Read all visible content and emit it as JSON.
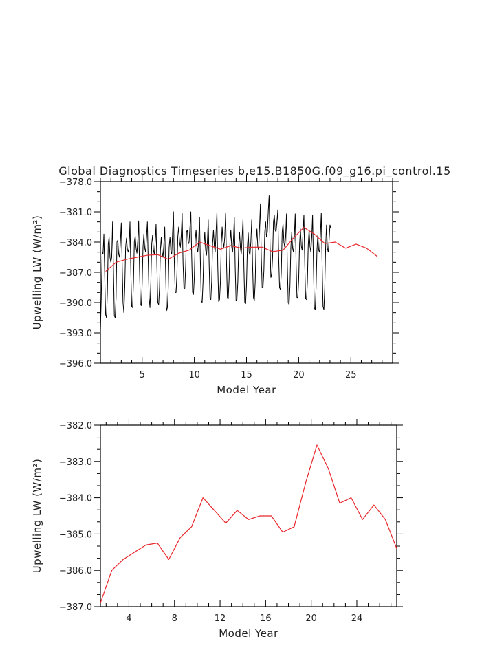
{
  "chart_data": [
    {
      "type": "line",
      "title": "Global Diagnostics Timeseries b.e15.B1850G.f09_g16.pi_control.15",
      "xlabel": "Model Year",
      "ylabel": "Upwelling LW (W/m²)",
      "xlim": [
        1,
        29
      ],
      "ylim": [
        -396.0,
        -378.0
      ],
      "xticks": [
        5,
        10,
        15,
        20,
        25
      ],
      "yticks": [
        -396.0,
        -393.0,
        -390.0,
        -387.0,
        -384.0,
        -381.0,
        -378.0
      ],
      "ytick_labels": [
        "−396.0",
        "−393.0",
        "−390.0",
        "−387.0",
        "−384.0",
        "−381.0",
        "−378.0"
      ],
      "grid": false,
      "series": [
        {
          "color": "#000000",
          "monthly": true,
          "x_start": 1.0,
          "x_step": 0.0833333,
          "values": [
            -392.8,
            -389.5,
            -385.0,
            -385.2,
            -383.2,
            -387.5,
            -391.2,
            -391.5,
            -389.0,
            -384.2,
            -383.5,
            -385.5,
            -386.0,
            -385.5,
            -382.0,
            -386.8,
            -391.3,
            -391.5,
            -389.5,
            -384.0,
            -383.8,
            -385.2,
            -385.5,
            -384.0,
            -382.1,
            -386.0,
            -390.0,
            -391.0,
            -388.5,
            -384.5,
            -383.6,
            -384.7,
            -385.0,
            -384.5,
            -382.0,
            -387.0,
            -390.4,
            -390.5,
            -388.0,
            -384.0,
            -383.4,
            -384.6,
            -385.1,
            -383.8,
            -381.9,
            -386.8,
            -390.2,
            -390.3,
            -388.2,
            -384.5,
            -383.2,
            -384.6,
            -385.0,
            -383.5,
            -382.0,
            -386.0,
            -389.5,
            -390.5,
            -388.0,
            -384.2,
            -383.3,
            -384.8,
            -385.2,
            -384.0,
            -382.2,
            -386.5,
            -390.0,
            -390.2,
            -388.5,
            -384.8,
            -383.5,
            -385.0,
            -385.5,
            -384.2,
            -382.5,
            -387.0,
            -390.8,
            -390.5,
            -388.5,
            -384.5,
            -383.5,
            -384.9,
            -385.2,
            -383.0,
            -381.0,
            -386.0,
            -389.0,
            -389.0,
            -387.2,
            -383.5,
            -382.5,
            -384.0,
            -384.5,
            -383.2,
            -381.1,
            -386.0,
            -388.5,
            -388.6,
            -386.5,
            -383.0,
            -382.8,
            -384.2,
            -384.0,
            -382.5,
            -381.0,
            -385.5,
            -389.0,
            -389.2,
            -387.5,
            -383.8,
            -382.8,
            -384.5,
            -385.0,
            -383.8,
            -381.5,
            -386.0,
            -389.8,
            -390.0,
            -388.0,
            -384.5,
            -383.0,
            -384.8,
            -385.3,
            -384.0,
            -381.8,
            -386.0,
            -389.5,
            -389.7,
            -387.8,
            -384.2,
            -382.8,
            -384.4,
            -385.0,
            -383.0,
            -381.0,
            -386.5,
            -389.9,
            -389.7,
            -388.0,
            -384.2,
            -382.5,
            -384.0,
            -384.5,
            -383.5,
            -381.1,
            -386.0,
            -389.5,
            -389.6,
            -387.7,
            -384.0,
            -382.8,
            -384.5,
            -385.0,
            -383.8,
            -381.5,
            -386.5,
            -389.8,
            -389.7,
            -388.0,
            -384.5,
            -383.0,
            -384.6,
            -385.2,
            -383.5,
            -381.7,
            -386.5,
            -390.0,
            -390.1,
            -388.2,
            -384.5,
            -383.1,
            -385.0,
            -385.3,
            -384.0,
            -381.8,
            -386.3,
            -389.5,
            -389.8,
            -388.0,
            -384.0,
            -382.7,
            -384.5,
            -384.8,
            -382.5,
            -380.2,
            -385.5,
            -388.5,
            -388.5,
            -386.8,
            -383.0,
            -382.0,
            -383.5,
            -383.0,
            -381.0,
            -379.4,
            -384.0,
            -387.5,
            -387.2,
            -385.5,
            -382.0,
            -381.3,
            -382.8,
            -383.0,
            -382.0,
            -380.8,
            -385.5,
            -388.5,
            -388.7,
            -387.0,
            -383.0,
            -382.2,
            -384.0,
            -384.5,
            -383.5,
            -381.2,
            -386.5,
            -390.0,
            -390.2,
            -388.3,
            -384.5,
            -383.0,
            -384.6,
            -385.0,
            -383.5,
            -381.2,
            -386.0,
            -389.5,
            -389.5,
            -387.8,
            -384.2,
            -382.7,
            -384.4,
            -384.8,
            -383.0,
            -381.3,
            -386.2,
            -389.6,
            -389.7,
            -388.0,
            -384.3,
            -382.8,
            -384.4,
            -385.0,
            -383.6,
            -381.3,
            -386.5,
            -390.5,
            -390.7,
            -388.5,
            -384.8,
            -383.3,
            -384.8,
            -385.0,
            -383.3,
            -381.1,
            -386.3,
            -390.4,
            -390.7,
            -388.5,
            -384.5,
            -382.3,
            -384.6,
            -385.0,
            -383.8,
            -382.3,
            -382.6
          ]
        },
        {
          "color": "#e8262b",
          "x": [
            1.5,
            2.5,
            3.5,
            4.5,
            5.5,
            6.5,
            7.5,
            8.5,
            9.5,
            10.5,
            11.5,
            12.5,
            13.5,
            14.5,
            15.5,
            16.5,
            17.5,
            18.5,
            19.5,
            20.5,
            21.5,
            22.5,
            23.5,
            24.5,
            25.5,
            26.5,
            27.5
          ],
          "values": [
            -386.9,
            -386.0,
            -385.7,
            -385.5,
            -385.3,
            -385.25,
            -385.7,
            -385.1,
            -384.8,
            -384.0,
            -384.35,
            -384.7,
            -384.35,
            -384.6,
            -384.5,
            -384.5,
            -384.95,
            -384.8,
            -383.6,
            -382.55,
            -383.2,
            -384.15,
            -384.0,
            -384.6,
            -384.2,
            -384.6,
            -385.4
          ]
        }
      ]
    },
    {
      "type": "line",
      "xlabel": "Model Year",
      "ylabel": "Upwelling LW (W/m²)",
      "xlim": [
        1.5,
        27.5
      ],
      "ylim": [
        -387.0,
        -382.0
      ],
      "xticks": [
        4,
        8,
        12,
        16,
        20,
        24
      ],
      "yticks": [
        -387.0,
        -386.0,
        -385.0,
        -384.0,
        -383.0,
        -382.0
      ],
      "ytick_labels": [
        "−387.0",
        "−386.0",
        "−385.0",
        "−384.0",
        "−383.0",
        "−382.0"
      ],
      "grid": false,
      "series": [
        {
          "color": "#e8262b",
          "x": [
            1.5,
            2.5,
            3.5,
            4.5,
            5.5,
            6.5,
            7.5,
            8.5,
            9.5,
            10.5,
            11.5,
            12.5,
            13.5,
            14.5,
            15.5,
            16.5,
            17.5,
            18.5,
            19.5,
            20.5,
            21.5,
            22.5,
            23.5,
            24.5,
            25.5,
            26.5,
            27.5
          ],
          "values": [
            -386.9,
            -386.0,
            -385.7,
            -385.5,
            -385.3,
            -385.25,
            -385.7,
            -385.1,
            -384.8,
            -384.0,
            -384.35,
            -384.7,
            -384.35,
            -384.6,
            -384.5,
            -384.5,
            -384.95,
            -384.8,
            -383.6,
            -382.55,
            -383.2,
            -384.15,
            -384.0,
            -384.6,
            -384.2,
            -384.6,
            -385.4
          ]
        }
      ]
    }
  ]
}
